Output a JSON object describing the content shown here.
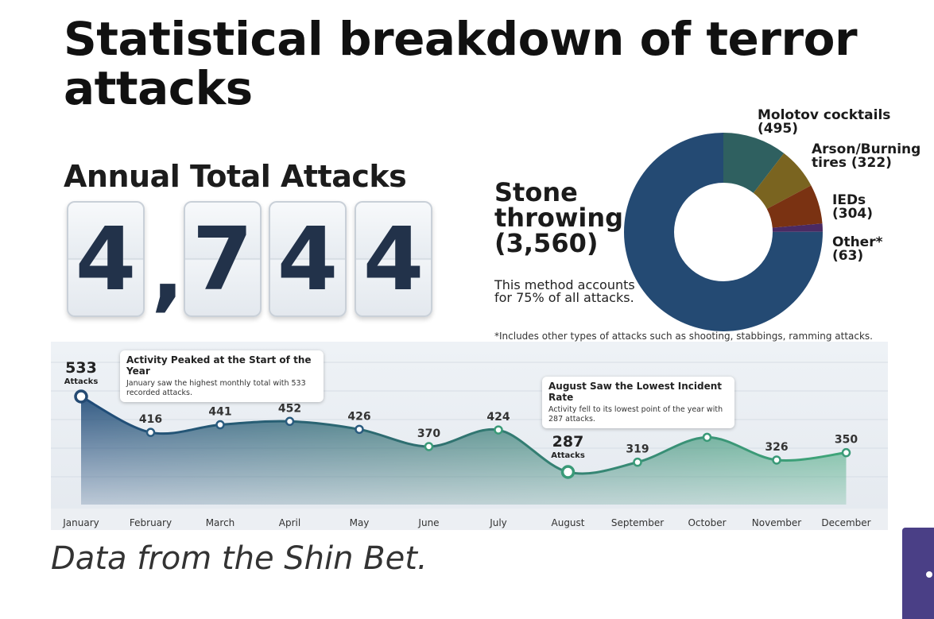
{
  "title": "Statistical breakdown of terror attacks",
  "annual": {
    "label": "Annual Total Attacks",
    "digits": [
      "4",
      "7",
      "4",
      "4"
    ],
    "comma": ","
  },
  "donut": {
    "stone_label": "Stone throwing (3,560)",
    "stone_note": "This method accounts for 75% of all attacks.",
    "labels": {
      "molotov": "Molotov cocktails (495)",
      "arson": "Arson/Burning tires (322)",
      "ieds": "IEDs (304)",
      "other": "Other* (63)"
    },
    "footnote": "*Includes other types of attacks such as shooting, stabbings, ramming attacks."
  },
  "line": {
    "callout_peak": {
      "title": "Activity Peaked at the Start of the Year",
      "body": "January saw the highest monthly total with 533 recorded attacks."
    },
    "callout_low": {
      "title": "August Saw the Lowest Incident Rate",
      "body": "Activity fell to its lowest point of the year with 287 attacks."
    },
    "attacks_word": "Attacks"
  },
  "source": "Data from the Shin Bet.",
  "chart_data": [
    {
      "type": "pie",
      "categories": [
        "Stone throwing",
        "Molotov cocktails",
        "Arson/Burning tires",
        "IEDs",
        "Other*"
      ],
      "values": [
        3560,
        495,
        322,
        304,
        63
      ],
      "colors": [
        "#244a73",
        "#2f6060",
        "#7a6420",
        "#7a3212",
        "#4a2a63"
      ]
    },
    {
      "type": "area",
      "categories": [
        "January",
        "February",
        "March",
        "April",
        "May",
        "June",
        "July",
        "August",
        "September",
        "October",
        "November",
        "December"
      ],
      "values": [
        533,
        416,
        441,
        452,
        426,
        370,
        424,
        287,
        319,
        400,
        326,
        350
      ]
    }
  ]
}
